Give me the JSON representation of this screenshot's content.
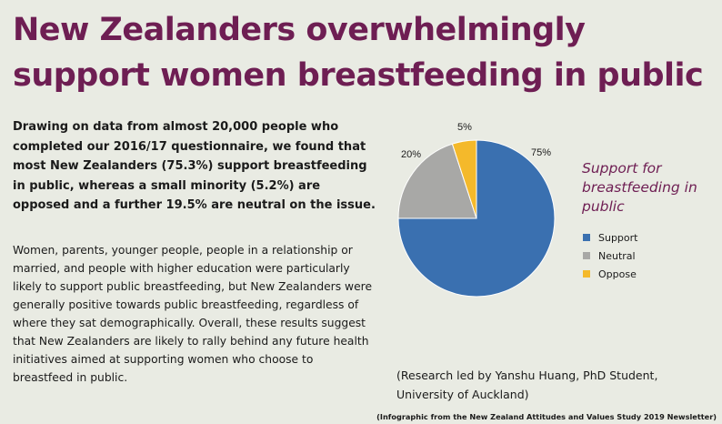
{
  "title": "New Zealanders overwhelmingly support women breastfeeding in public",
  "lead": "Drawing on data from almost 20,000 people who completed our 2016/17 questionnaire, we found that most New Zealanders (75.3%) support breastfeeding in public, whereas a small minority (5.2%) are opposed and a further 19.5% are neutral on the issue.",
  "body": "Women, parents, younger people, people in a relationship or married, and people with higher education were particularly likely to support public breastfeeding, but New Zealanders were generally positive towards public breastfeeding, regardless of where they sat demographically. Overall, these results suggest that New Zealanders are likely to rally behind any future health initiatives aimed at supporting women who choose to breastfeed in public.",
  "credit": "(Research led by Yanshu Huang, PhD Student, University of Auckland)",
  "source": "(Infographic from the New Zealand Attitudes and Values Study 2019 Newsletter)",
  "chart_data": {
    "type": "pie",
    "title": "Support for breastfeeding in public",
    "slices": [
      {
        "label": "Support",
        "value": 75,
        "display": "75%",
        "color": "#3a70b0"
      },
      {
        "label": "Neutral",
        "value": 20,
        "display": "20%",
        "color": "#a8a8a6"
      },
      {
        "label": "Oppose",
        "value": 5,
        "display": "5%",
        "color": "#f4b92b"
      }
    ],
    "legend_position": "right"
  }
}
